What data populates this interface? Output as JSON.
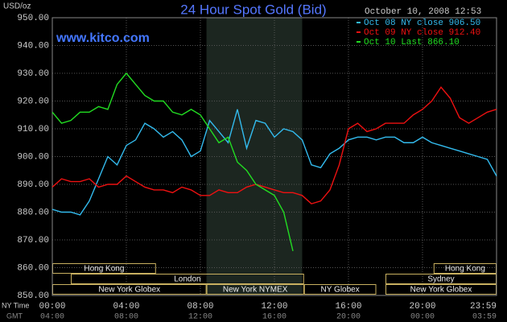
{
  "chart_data": {
    "type": "line",
    "title": "24 Hour Spot Gold (Bid)",
    "subtitle": "October 10, 2008 12:53",
    "source": "www.kitco.com",
    "y_label": "USD/oz",
    "x_label": "NY Time",
    "x2_label": "GMT",
    "xlim": [
      0,
      24
    ],
    "xticks": [
      {
        "value": 0,
        "label": "00:00"
      },
      {
        "value": 4,
        "label": "04:00"
      },
      {
        "value": 8,
        "label": "08:00"
      },
      {
        "value": 12,
        "label": "12:00"
      },
      {
        "value": 16,
        "label": "16:00"
      },
      {
        "value": 20,
        "label": "20:00"
      },
      {
        "value": 24,
        "label": "23:59"
      }
    ],
    "x2ticks": [
      {
        "value": 0,
        "label": "04:00"
      },
      {
        "value": 4,
        "label": "08:00"
      },
      {
        "value": 8,
        "label": "12:00"
      },
      {
        "value": 12,
        "label": "16:00"
      },
      {
        "value": 16,
        "label": "20:00"
      },
      {
        "value": 20,
        "label": "00:00"
      },
      {
        "value": 24,
        "label": "03:59"
      }
    ],
    "ylim": [
      850,
      950
    ],
    "yticks": [
      {
        "value": 850,
        "label": "850.00"
      },
      {
        "value": 860,
        "label": "860.00"
      },
      {
        "value": 870,
        "label": "870.00"
      },
      {
        "value": 880,
        "label": "880.00"
      },
      {
        "value": 890,
        "label": "890.00"
      },
      {
        "value": 900,
        "label": "900.00"
      },
      {
        "value": 910,
        "label": "910.00"
      },
      {
        "value": 920,
        "label": "920.00"
      },
      {
        "value": 930,
        "label": "930.00"
      },
      {
        "value": 940,
        "label": "940.00"
      },
      {
        "value": 950,
        "label": "950.00"
      }
    ],
    "grid": true,
    "highlight": [
      8.33,
      13.5
    ],
    "sessions": [
      [
        {
          "label": "Hong Kong",
          "start": 0,
          "end": 5.6
        },
        {
          "label": "Hong Kong",
          "start": 20.6,
          "end": 24
        }
      ],
      [
        {
          "label": "London",
          "start": 1,
          "end": 13.6
        },
        {
          "label": "Sydney",
          "start": 18,
          "end": 24
        }
      ],
      [
        {
          "label": "New York Globex",
          "start": 0,
          "end": 8.33
        },
        {
          "label": "New York NYMEX",
          "start": 8.33,
          "end": 13.6
        },
        {
          "label": "NY Globex",
          "start": 13.6,
          "end": 17.5
        },
        {
          "label": "New York Globex",
          "start": 18,
          "end": 24
        }
      ]
    ],
    "x": [
      0,
      0.5,
      1,
      1.5,
      2,
      2.5,
      3,
      3.5,
      4,
      4.5,
      5,
      5.5,
      6,
      6.5,
      7,
      7.5,
      8,
      8.5,
      9,
      9.5,
      10,
      10.5,
      11,
      11.5,
      12,
      12.5,
      13,
      13.5,
      14,
      14.5,
      15,
      15.5,
      16,
      16.5,
      17,
      17.5,
      18,
      18.5,
      19,
      19.5,
      20,
      20.5,
      21,
      21.5,
      22,
      22.5,
      23,
      23.5,
      24
    ],
    "series": [
      {
        "name": "Oct 08 NY close 906.50",
        "color": "#33bbee",
        "values": [
          881,
          880,
          880,
          879,
          884,
          892,
          900,
          897,
          904,
          906,
          912,
          910,
          907,
          909,
          906,
          900,
          902,
          913,
          909,
          905,
          917,
          903,
          913,
          912,
          907,
          910,
          909,
          906,
          897,
          896,
          901,
          903,
          906,
          907,
          907,
          906,
          907,
          907,
          905,
          905,
          907,
          905,
          904,
          903,
          902,
          901,
          900,
          899,
          893
        ]
      },
      {
        "name": "Oct 09 NY close 912.40",
        "color": "#ee1111",
        "values": [
          889,
          892,
          891,
          891,
          892,
          889,
          890,
          890,
          893,
          891,
          889,
          888,
          888,
          887,
          889,
          888,
          886,
          886,
          888,
          887,
          887,
          889,
          890,
          889,
          888,
          887,
          887,
          886,
          883,
          884,
          888,
          897,
          910,
          912,
          909,
          910,
          912,
          912,
          912,
          915,
          917,
          920,
          925,
          921,
          914,
          912,
          914,
          916,
          917
        ]
      },
      {
        "name": "Oct 10 Last 866.10",
        "color": "#22dd22",
        "values": [
          916,
          912,
          913,
          916,
          916,
          918,
          917,
          926,
          930,
          926,
          922,
          920,
          920,
          916,
          915,
          917,
          915,
          910,
          905,
          907,
          898,
          895,
          890,
          888,
          886,
          880,
          866,
          null,
          null,
          null,
          null,
          null,
          null,
          null,
          null,
          null,
          null,
          null,
          null,
          null,
          null,
          null,
          null,
          null,
          null,
          null,
          null,
          null,
          null
        ]
      }
    ]
  }
}
